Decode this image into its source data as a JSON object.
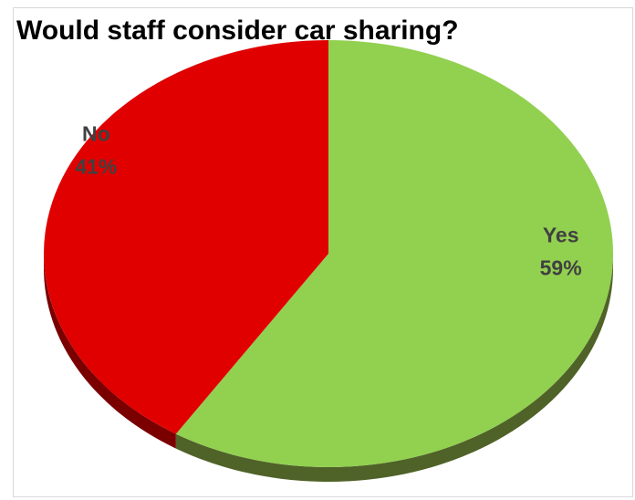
{
  "chart_data": {
    "type": "pie",
    "title": "Would staff consider car sharing?",
    "slices": [
      {
        "label": "Yes",
        "percent_label": "59%",
        "value": 59,
        "color": "#92d050",
        "side_color": "#4f6228"
      },
      {
        "label": "No",
        "percent_label": "41%",
        "value": 41,
        "color": "#e00000",
        "side_color": "#7a0000"
      }
    ],
    "label_color": "#404040",
    "start": "12 o'clock",
    "direction": "clockwise",
    "style": "3d-tilted"
  }
}
